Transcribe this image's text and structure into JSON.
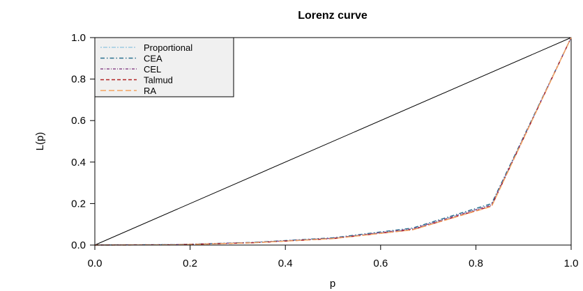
{
  "chart_data": {
    "type": "line",
    "title": "Lorenz curve",
    "xlabel": "p",
    "ylabel": "L(p)",
    "xlim": [
      0,
      1
    ],
    "ylim": [
      0,
      1
    ],
    "xticks": [
      "0.0",
      "0.2",
      "0.4",
      "0.6",
      "0.8",
      "1.0"
    ],
    "yticks": [
      "0.0",
      "0.2",
      "0.4",
      "0.6",
      "0.8",
      "1.0"
    ],
    "legend_position": "top-left",
    "grid": false,
    "equality_line": {
      "x": [
        0,
        1
      ],
      "y": [
        0,
        1
      ],
      "color": "#000000"
    },
    "x": [
      0,
      0.167,
      0.333,
      0.5,
      0.667,
      0.833,
      1.0
    ],
    "series": [
      {
        "name": "Proportional",
        "color": "#9ecae1",
        "dash": "2,2,6,2",
        "values": [
          0,
          0.002,
          0.012,
          0.033,
          0.078,
          0.195,
          1.0
        ]
      },
      {
        "name": "CEA",
        "color": "#2b6f8e",
        "dash": "6,3,1.5,3",
        "values": [
          0,
          0.002,
          0.013,
          0.035,
          0.082,
          0.2,
          1.0
        ]
      },
      {
        "name": "CEL",
        "color": "#8b4a8b",
        "dash": "4,2,1,2",
        "values": [
          0,
          0.002,
          0.012,
          0.033,
          0.078,
          0.193,
          1.0
        ]
      },
      {
        "name": "Talmud",
        "color": "#b22222",
        "dash": "5,3",
        "values": [
          0,
          0.001,
          0.011,
          0.031,
          0.074,
          0.188,
          1.0
        ]
      },
      {
        "name": "RA",
        "color": "#f4a460",
        "dash": "8,4",
        "values": [
          0,
          0.001,
          0.011,
          0.031,
          0.073,
          0.186,
          1.0
        ]
      }
    ]
  }
}
